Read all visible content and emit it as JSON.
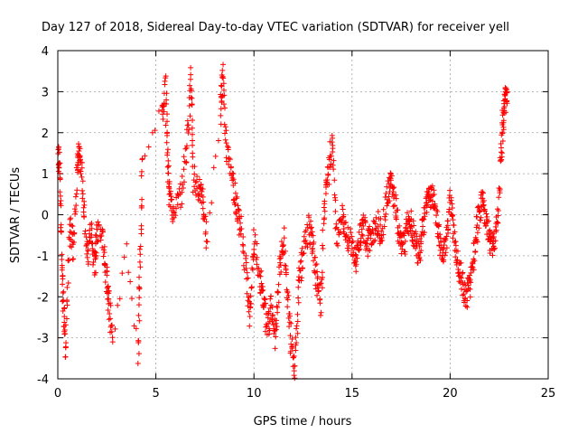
{
  "chart_data": {
    "type": "scatter",
    "title": "Day 127 of 2018, Sidereal Day-to-day VTEC variation (SDTVAR) for receiver yell",
    "xlabel": "GPS time / hours",
    "ylabel": "SDTVAR / TECUs",
    "xlim": [
      0,
      25
    ],
    "ylim": [
      -4,
      4
    ],
    "x_ticks": [
      "0",
      "5",
      "10",
      "15",
      "20",
      "25"
    ],
    "y_ticks": [
      "-4",
      "-3",
      "-2",
      "-1",
      "0",
      "1",
      "2",
      "3",
      "4"
    ],
    "grid": true,
    "marker": "+",
    "color": "#ff0000",
    "series_trace": [
      [
        0.0,
        1.4
      ],
      [
        0.1,
        1.2
      ],
      [
        0.2,
        -1.0
      ],
      [
        0.3,
        -2.4
      ],
      [
        0.4,
        -3.2
      ],
      [
        0.6,
        -0.3
      ],
      [
        0.8,
        -0.8
      ],
      [
        1.0,
        1.2
      ],
      [
        1.1,
        1.6
      ],
      [
        1.3,
        0.6
      ],
      [
        1.5,
        -1.0
      ],
      [
        1.7,
        -0.5
      ],
      [
        1.9,
        -1.3
      ],
      [
        2.0,
        -0.4
      ],
      [
        2.3,
        -0.6
      ],
      [
        2.5,
        -1.5
      ],
      [
        2.6,
        -2.2
      ],
      [
        2.8,
        -3.0
      ],
      [
        3.5,
        -0.8
      ],
      [
        4.1,
        -3.4
      ],
      [
        4.2,
        -1.2
      ],
      [
        4.3,
        1.2
      ],
      [
        5.3,
        2.5
      ],
      [
        5.5,
        3.1
      ],
      [
        5.6,
        1.5
      ],
      [
        5.7,
        0.4
      ],
      [
        5.9,
        -0.1
      ],
      [
        6.3,
        0.6
      ],
      [
        6.6,
        1.8
      ],
      [
        6.8,
        3.4
      ],
      [
        6.9,
        0.9
      ],
      [
        7.2,
        0.6
      ],
      [
        7.4,
        0.3
      ],
      [
        7.6,
        -0.6
      ],
      [
        8.3,
        2.5
      ],
      [
        8.4,
        3.4
      ],
      [
        8.6,
        1.5
      ],
      [
        8.9,
        0.9
      ],
      [
        9.1,
        0.2
      ],
      [
        9.3,
        -0.2
      ],
      [
        9.6,
        -1.3
      ],
      [
        9.8,
        -2.6
      ],
      [
        10.0,
        -0.5
      ],
      [
        10.3,
        -1.5
      ],
      [
        10.5,
        -2.2
      ],
      [
        10.7,
        -2.8
      ],
      [
        10.9,
        -2.2
      ],
      [
        11.1,
        -3.0
      ],
      [
        11.3,
        -1.5
      ],
      [
        11.5,
        -0.5
      ],
      [
        11.7,
        -1.8
      ],
      [
        11.9,
        -3.2
      ],
      [
        12.1,
        -3.8
      ],
      [
        12.3,
        -1.6
      ],
      [
        12.5,
        -1.0
      ],
      [
        12.8,
        -0.3
      ],
      [
        13.0,
        -0.8
      ],
      [
        13.2,
        -1.6
      ],
      [
        13.4,
        -2.2
      ],
      [
        13.6,
        0.3
      ],
      [
        13.8,
        1.0
      ],
      [
        14.0,
        1.9
      ],
      [
        14.2,
        -0.6
      ],
      [
        14.5,
        -0.1
      ],
      [
        14.7,
        -0.5
      ],
      [
        15.0,
        -0.7
      ],
      [
        15.2,
        -1.2
      ],
      [
        15.4,
        -0.5
      ],
      [
        15.6,
        -0.3
      ],
      [
        15.8,
        -0.7
      ],
      [
        16.0,
        -0.4
      ],
      [
        16.3,
        -0.2
      ],
      [
        16.5,
        -0.5
      ],
      [
        16.8,
        0.5
      ],
      [
        17.0,
        0.8
      ],
      [
        17.2,
        0.3
      ],
      [
        17.4,
        -0.5
      ],
      [
        17.6,
        -0.8
      ],
      [
        17.8,
        -0.3
      ],
      [
        18.0,
        -0.1
      ],
      [
        18.2,
        -0.6
      ],
      [
        18.4,
        -1.0
      ],
      [
        18.6,
        -0.3
      ],
      [
        18.8,
        0.2
      ],
      [
        19.0,
        0.5
      ],
      [
        19.2,
        0.3
      ],
      [
        19.4,
        -0.4
      ],
      [
        19.6,
        -1.0
      ],
      [
        19.8,
        -0.6
      ],
      [
        20.0,
        0.4
      ],
      [
        20.2,
        -0.6
      ],
      [
        20.4,
        -1.2
      ],
      [
        20.6,
        -1.6
      ],
      [
        20.8,
        -2.0
      ],
      [
        21.0,
        -1.8
      ],
      [
        21.2,
        -1.0
      ],
      [
        21.4,
        -0.2
      ],
      [
        21.6,
        0.3
      ],
      [
        21.8,
        0.0
      ],
      [
        22.0,
        -0.5
      ],
      [
        22.2,
        -0.9
      ],
      [
        22.4,
        -0.2
      ],
      [
        22.6,
        1.6
      ],
      [
        22.7,
        2.3
      ],
      [
        22.8,
        2.8
      ],
      [
        22.9,
        3.0
      ]
    ]
  }
}
